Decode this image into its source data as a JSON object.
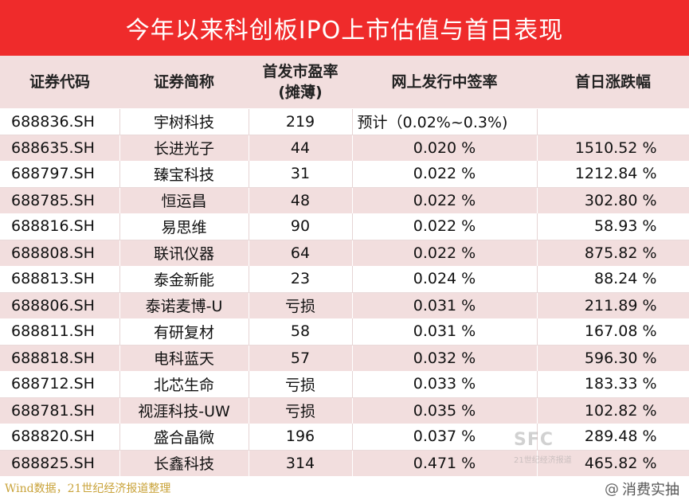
{
  "title": "今年以来科创板IPO上市估值与首日表现",
  "headers": {
    "code": "证券代码",
    "name": "证券简称",
    "pe_line1": "首发市盈率",
    "pe_line2": "(摊薄)",
    "rate": "网上发行中签率",
    "change": "首日涨跌幅"
  },
  "rows": [
    {
      "code": "688836.SH",
      "name": "宇树科技",
      "pe": "219",
      "rate": "预计（0.02%~0.3%)",
      "change": ""
    },
    {
      "code": "688635.SH",
      "name": "长进光子",
      "pe": "44",
      "rate": "0.020 %",
      "change": "1510.52 %"
    },
    {
      "code": "688797.SH",
      "name": "臻宝科技",
      "pe": "31",
      "rate": "0.022 %",
      "change": "1212.84 %"
    },
    {
      "code": "688785.SH",
      "name": "恒运昌",
      "pe": "48",
      "rate": "0.022 %",
      "change": "302.80 %"
    },
    {
      "code": "688816.SH",
      "name": "易思维",
      "pe": "90",
      "rate": "0.022 %",
      "change": "58.93 %"
    },
    {
      "code": "688808.SH",
      "name": "联讯仪器",
      "pe": "64",
      "rate": "0.022 %",
      "change": "875.82 %"
    },
    {
      "code": "688813.SH",
      "name": "泰金新能",
      "pe": "23",
      "rate": "0.024 %",
      "change": "88.24 %"
    },
    {
      "code": "688806.SH",
      "name": "泰诺麦博-U",
      "pe": "亏损",
      "rate": "0.031 %",
      "change": "211.89 %"
    },
    {
      "code": "688811.SH",
      "name": "有研复材",
      "pe": "58",
      "rate": "0.031 %",
      "change": "167.08 %"
    },
    {
      "code": "688818.SH",
      "name": "电科蓝天",
      "pe": "57",
      "rate": "0.032 %",
      "change": "596.30 %"
    },
    {
      "code": "688712.SH",
      "name": "北芯生命",
      "pe": "亏损",
      "rate": "0.033 %",
      "change": "183.33 %"
    },
    {
      "code": "688781.SH",
      "name": "视涯科技-UW",
      "pe": "亏损",
      "rate": "0.035 %",
      "change": "102.82 %"
    },
    {
      "code": "688820.SH",
      "name": "盛合晶微",
      "pe": "196",
      "rate": "0.037 %",
      "change": "289.48 %"
    },
    {
      "code": "688825.SH",
      "name": "长鑫科技",
      "pe": "314",
      "rate": "0.471 %",
      "change": "465.82 %"
    }
  ],
  "source": "Wind数据，21世纪经济报道整理",
  "watermark_logo": "SFC",
  "watermark_sub": "21世纪经济报道",
  "weibo_handle": "消费实抽",
  "colors": {
    "title_bg": "#ef2b2b",
    "stripe": "#f2dede",
    "source_text": "#c9a33a"
  }
}
